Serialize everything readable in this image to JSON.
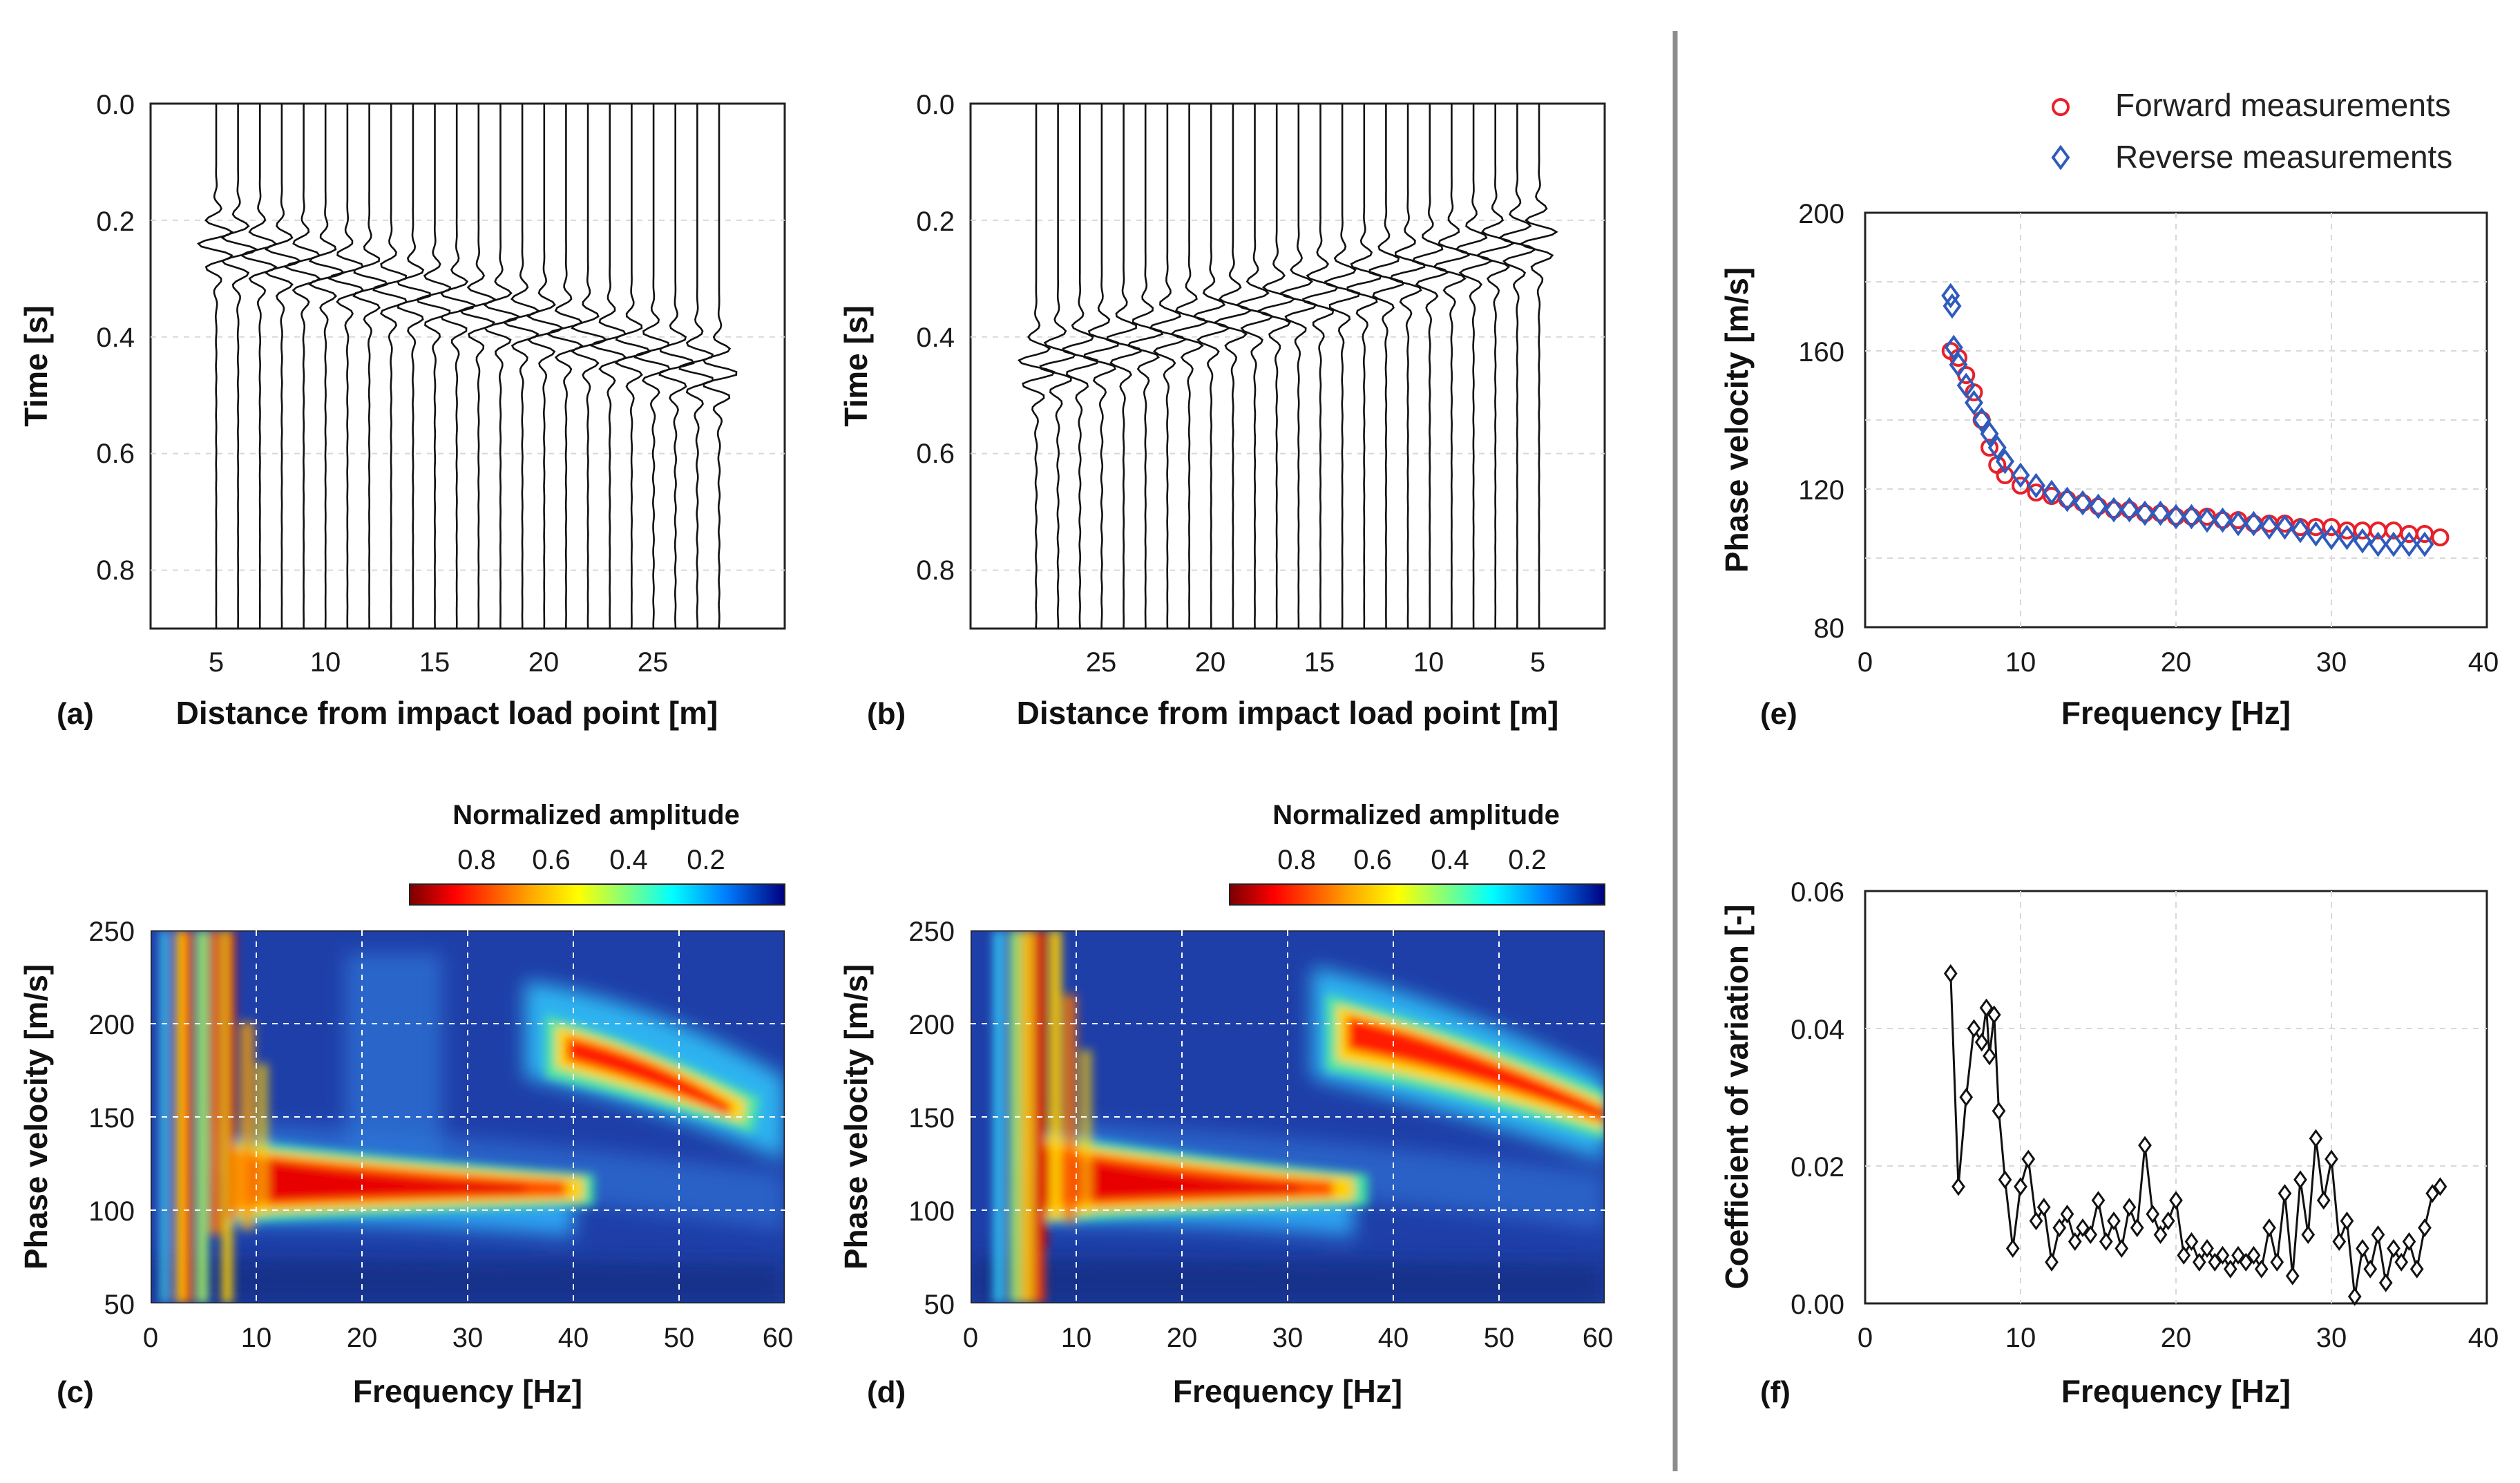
{
  "colors": {
    "forward": "#e8202a",
    "reverse": "#2f5bbd",
    "cov": "#111111",
    "divider": "#8c8c8c"
  },
  "panels": {
    "a": {
      "label": "(a)",
      "xlabel": "Distance from impact load point [m]",
      "ylabel": "Time [s]",
      "xticks": [
        "5",
        "10",
        "15",
        "20",
        "25"
      ],
      "yticks": [
        "0.0",
        "0.2",
        "0.4",
        "0.6",
        "0.8"
      ]
    },
    "b": {
      "label": "(b)",
      "xlabel": "Distance from impact load point [m]",
      "ylabel": "Time [s]",
      "xticks": [
        "25",
        "20",
        "15",
        "10",
        "5"
      ],
      "yticks": [
        "0.0",
        "0.2",
        "0.4",
        "0.6",
        "0.8"
      ]
    },
    "c": {
      "label": "(c)",
      "xlabel": "Frequency [Hz]",
      "ylabel": "Phase velocity [m/s]",
      "xticks": [
        "0",
        "10",
        "20",
        "30",
        "40",
        "50",
        "60"
      ],
      "yticks": [
        "250",
        "200",
        "150",
        "100",
        "50"
      ],
      "colorbar_title": "Normalized amplitude",
      "colorbar_ticks": [
        "0.8",
        "0.6",
        "0.4",
        "0.2"
      ]
    },
    "d": {
      "label": "(d)",
      "xlabel": "Frequency [Hz]",
      "ylabel": "Phase velocity [m/s]",
      "xticks": [
        "0",
        "10",
        "20",
        "30",
        "40",
        "50",
        "60"
      ],
      "yticks": [
        "250",
        "200",
        "150",
        "100",
        "50"
      ],
      "colorbar_title": "Normalized amplitude",
      "colorbar_ticks": [
        "0.8",
        "0.6",
        "0.4",
        "0.2"
      ]
    },
    "e": {
      "label": "(e)",
      "xlabel": "Frequency [Hz]",
      "ylabel": "Phase velocity [m/s]",
      "xticks": [
        "0",
        "10",
        "20",
        "30",
        "40"
      ],
      "yticks": [
        "200",
        "160",
        "120",
        "80"
      ],
      "legend": [
        "Forward measurements",
        "Reverse measurements"
      ]
    },
    "f": {
      "label": "(f)",
      "xlabel": "Frequency [Hz]",
      "ylabel": "Coefficient of variation [-]",
      "xticks": [
        "0",
        "10",
        "20",
        "30",
        "40"
      ],
      "yticks": [
        "0.06",
        "0.04",
        "0.02",
        "0.00"
      ]
    }
  },
  "chart_data": [
    {
      "panel": "a",
      "type": "seismogram",
      "title": "",
      "xlabel": "Distance from impact load point [m]",
      "ylabel": "Time [s]",
      "xlim": [
        2,
        31
      ],
      "ylim": [
        0.9,
        0.0
      ],
      "trace_spacing_m": 1.0,
      "trace_offsets_m": [
        5,
        6,
        7,
        8,
        9,
        10,
        11,
        12,
        13,
        14,
        15,
        16,
        17,
        18,
        19,
        20,
        21,
        22,
        23,
        24,
        25,
        26,
        27,
        28
      ],
      "arrival_time_s": {
        "at_5m": 0.24,
        "at_28m": 0.46
      }
    },
    {
      "panel": "b",
      "type": "seismogram",
      "title": "",
      "xlabel": "Distance from impact load point [m]",
      "ylabel": "Time [s]",
      "xlim": [
        31,
        2
      ],
      "ylim": [
        0.9,
        0.0
      ],
      "trace_spacing_m": 1.0,
      "trace_offsets_m": [
        5,
        6,
        7,
        8,
        9,
        10,
        11,
        12,
        13,
        14,
        15,
        16,
        17,
        18,
        19,
        20,
        21,
        22,
        23,
        24,
        25,
        26,
        27,
        28
      ],
      "arrival_time_s": {
        "at_5m": 0.23,
        "at_28m": 0.45
      }
    },
    {
      "panel": "c",
      "type": "heatmap",
      "title": "",
      "xlabel": "Frequency [Hz]",
      "ylabel": "Phase velocity [m/s]",
      "xlim": [
        0,
        60
      ],
      "ylim": [
        50,
        250
      ],
      "colorbar_range": [
        0,
        1
      ],
      "dispersion_ridge": {
        "x": [
          8,
          10,
          15,
          20,
          25,
          30,
          35,
          38
        ],
        "y": [
          125,
          120,
          115,
          112,
          110,
          109,
          108,
          108
        ]
      },
      "high_mode_ridge": {
        "x": [
          40,
          45,
          50,
          53
        ],
        "y": [
          185,
          175,
          165,
          160
        ]
      }
    },
    {
      "panel": "d",
      "type": "heatmap",
      "title": "",
      "xlabel": "Frequency [Hz]",
      "ylabel": "Phase velocity [m/s]",
      "xlim": [
        0,
        60
      ],
      "ylim": [
        50,
        250
      ],
      "colorbar_range": [
        0,
        1
      ],
      "dispersion_ridge": {
        "x": [
          8,
          10,
          15,
          20,
          25,
          30,
          33
        ],
        "y": [
          125,
          120,
          115,
          112,
          110,
          108,
          107
        ]
      },
      "high_mode_ridge": {
        "x": [
          36,
          40,
          45,
          50,
          55,
          60
        ],
        "y": [
          195,
          185,
          175,
          165,
          155,
          147
        ]
      }
    },
    {
      "panel": "e",
      "type": "scatter",
      "title": "",
      "xlabel": "Frequency [Hz]",
      "ylabel": "Phase velocity [m/s]",
      "xlim": [
        0,
        40
      ],
      "ylim": [
        80,
        200
      ],
      "legend_position": "top-right",
      "series": [
        {
          "name": "Forward measurements",
          "marker": "circle",
          "x": [
            5.5,
            6.0,
            6.5,
            7.0,
            7.5,
            8.0,
            8.5,
            9.0,
            10,
            11,
            12,
            13,
            14,
            15,
            16,
            17,
            18,
            19,
            20,
            21,
            22,
            23,
            24,
            25,
            26,
            27,
            28,
            29,
            30,
            31,
            32,
            33,
            34,
            35,
            36,
            37
          ],
          "y": [
            160,
            158,
            153,
            148,
            140,
            132,
            127,
            124,
            121,
            119,
            118,
            117,
            116,
            115,
            114,
            114,
            113,
            113,
            112,
            112,
            112,
            111,
            111,
            110,
            110,
            110,
            109,
            109,
            109,
            108,
            108,
            108,
            108,
            107,
            107,
            106
          ]
        },
        {
          "name": "Reverse measurements",
          "marker": "diamond",
          "x": [
            5.5,
            5.6,
            5.7,
            6.0,
            6.5,
            7.0,
            7.5,
            8.0,
            8.5,
            9.0,
            10,
            11,
            12,
            13,
            14,
            15,
            16,
            17,
            18,
            19,
            20,
            21,
            22,
            23,
            24,
            25,
            26,
            27,
            28,
            29,
            30,
            31,
            32,
            33,
            34,
            35,
            36
          ],
          "y": [
            176,
            173,
            161,
            156,
            150,
            145,
            140,
            136,
            132,
            128,
            124,
            121,
            119,
            117,
            116,
            115,
            114,
            114,
            113,
            113,
            112,
            112,
            111,
            111,
            110,
            110,
            109,
            109,
            108,
            107,
            106,
            106,
            105,
            104,
            104,
            104,
            104
          ]
        }
      ]
    },
    {
      "panel": "f",
      "type": "line",
      "title": "",
      "xlabel": "Frequency [Hz]",
      "ylabel": "Coefficient of variation [-]",
      "xlim": [
        0,
        40
      ],
      "ylim": [
        0,
        0.06
      ],
      "marker": "diamond",
      "x": [
        5.5,
        6.0,
        6.5,
        7.0,
        7.5,
        7.8,
        8.0,
        8.3,
        8.6,
        9.0,
        9.5,
        10,
        10.5,
        11,
        11.5,
        12,
        12.5,
        13,
        13.5,
        14,
        14.5,
        15,
        15.5,
        16,
        16.5,
        17,
        17.5,
        18,
        18.5,
        19,
        19.5,
        20,
        20.5,
        21,
        21.5,
        22,
        22.5,
        23,
        23.5,
        24,
        24.5,
        25,
        25.5,
        26,
        26.5,
        27,
        27.5,
        28,
        28.5,
        29,
        29.5,
        30,
        30.5,
        31,
        31.5,
        32,
        32.5,
        33,
        33.5,
        34,
        34.5,
        35,
        35.5,
        36,
        36.5,
        37
      ],
      "y": [
        0.048,
        0.017,
        0.03,
        0.04,
        0.038,
        0.043,
        0.036,
        0.042,
        0.028,
        0.018,
        0.008,
        0.017,
        0.021,
        0.012,
        0.014,
        0.006,
        0.011,
        0.013,
        0.009,
        0.011,
        0.01,
        0.015,
        0.009,
        0.012,
        0.008,
        0.014,
        0.011,
        0.023,
        0.013,
        0.01,
        0.012,
        0.015,
        0.007,
        0.009,
        0.006,
        0.008,
        0.006,
        0.007,
        0.005,
        0.007,
        0.006,
        0.007,
        0.005,
        0.011,
        0.006,
        0.016,
        0.004,
        0.018,
        0.01,
        0.024,
        0.015,
        0.021,
        0.009,
        0.012,
        0.001,
        0.008,
        0.005,
        0.01,
        0.003,
        0.008,
        0.006,
        0.009,
        0.005,
        0.011,
        0.016,
        0.017
      ]
    }
  ]
}
